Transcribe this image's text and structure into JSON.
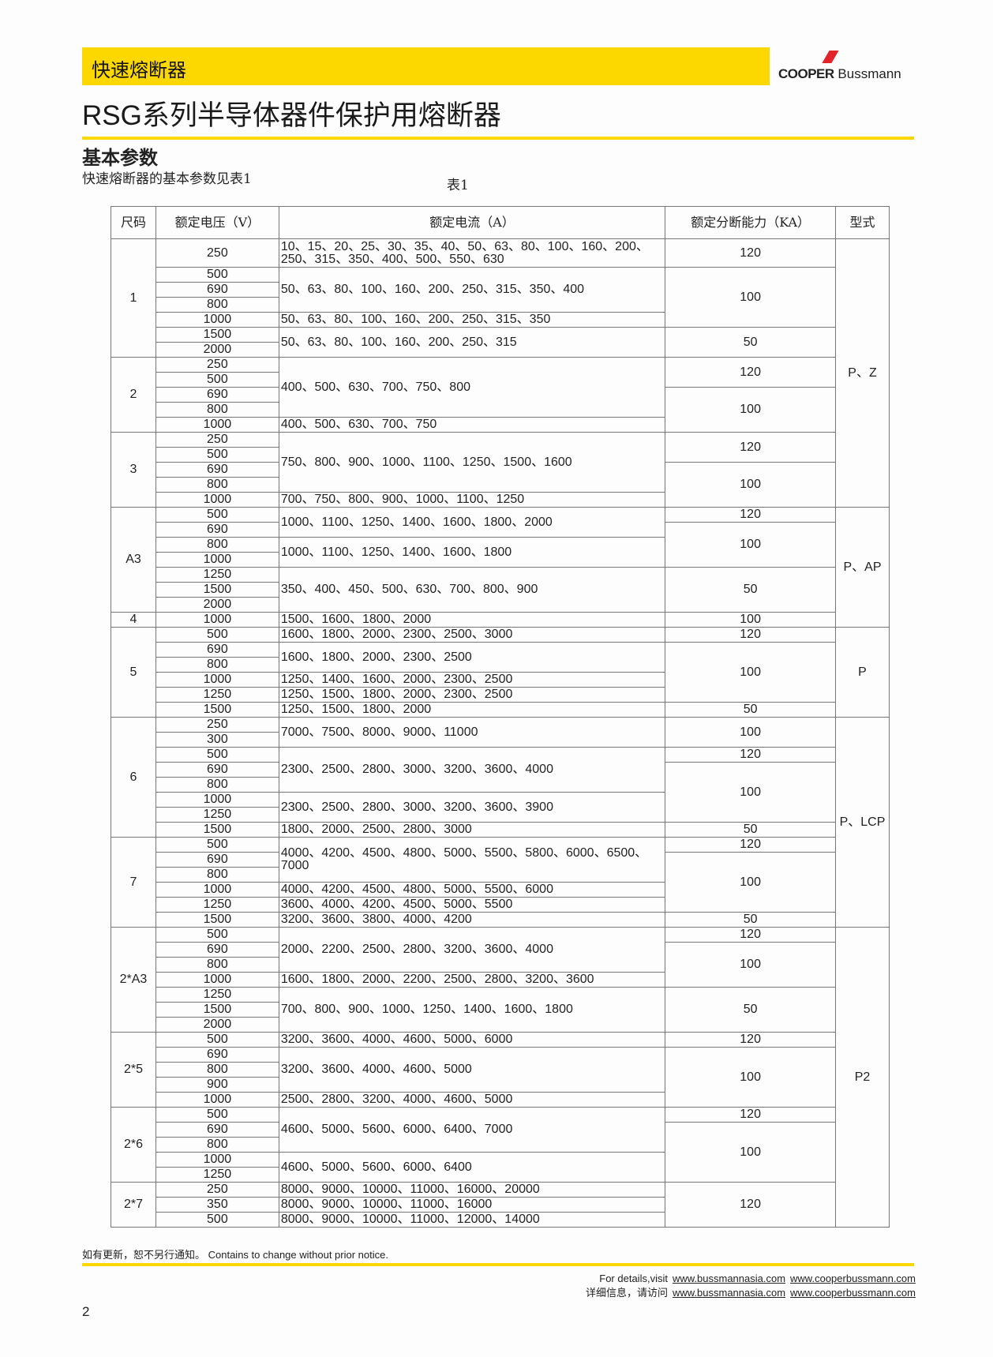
{
  "header": {
    "category": "快速熔断器",
    "brand_bold": "COOPER",
    "brand_rest": " Bussmann",
    "brand_color": "#e2232a",
    "accent": "#fcd800"
  },
  "title": "RSG系列半导体器件保护用熔断器",
  "section_title": "基本参数",
  "section_sub": "快速熔断器的基本参数见表1",
  "table_caption": "表1",
  "table": {
    "headers": [
      "尺码",
      "额定电压（V）",
      "额定电流（A）",
      "额定分断能力（KA）",
      "型式"
    ],
    "types": [
      {
        "text": "P、Z",
        "groups": 3
      },
      {
        "text": "P、AP",
        "groups": 2
      },
      {
        "text": "P",
        "groups": 1
      },
      {
        "text": "P、LCP",
        "groups": 2
      },
      {
        "text": "P2",
        "groups": 4
      }
    ],
    "groups": [
      {
        "size": "1",
        "voltages": [
          "250",
          "500",
          "690",
          "800",
          "1000",
          "1500",
          "2000"
        ],
        "currents": [
          {
            "text": "10、15、20、25、30、35、40、50、63、80、100、160、200、250、315、350、400、500、550、630",
            "span": 1
          },
          {
            "text": "50、63、80、100、160、200、250、315、350、400",
            "span": 3
          },
          {
            "text": "50、63、80、100、160、200、250、315、350",
            "span": 1
          },
          {
            "text": "50、63、80、100、160、200、250、315",
            "span": 2
          }
        ],
        "ka": [
          {
            "text": "120",
            "span": 1
          },
          {
            "text": "100",
            "span": 4
          },
          {
            "text": "50",
            "span": 2
          }
        ]
      },
      {
        "size": "2",
        "voltages": [
          "250",
          "500",
          "690",
          "800",
          "1000"
        ],
        "currents": [
          {
            "text": "400、500、630、700、750、800",
            "span": 4
          },
          {
            "text": "400、500、630、700、750",
            "span": 1
          }
        ],
        "ka": [
          {
            "text": "120",
            "span": 2
          },
          {
            "text": "100",
            "span": 3
          }
        ]
      },
      {
        "size": "3",
        "voltages": [
          "250",
          "500",
          "690",
          "800",
          "1000"
        ],
        "currents": [
          {
            "text": "750、800、900、1000、1100、1250、1500、1600",
            "span": 4
          },
          {
            "text": "700、750、800、900、1000、1100、1250",
            "span": 1
          }
        ],
        "ka": [
          {
            "text": "120",
            "span": 2
          },
          {
            "text": "100",
            "span": 3
          }
        ]
      },
      {
        "size": "A3",
        "voltages": [
          "500",
          "690",
          "800",
          "1000",
          "1250",
          "1500",
          "2000"
        ],
        "currents": [
          {
            "text": "1000、1100、1250、1400、1600、1800、2000",
            "span": 2
          },
          {
            "text": "1000、1100、1250、1400、1600、1800",
            "span": 2
          },
          {
            "text": "350、400、450、500、630、700、800、900",
            "span": 3
          }
        ],
        "ka": [
          {
            "text": "120",
            "span": 1
          },
          {
            "text": "100",
            "span": 3
          },
          {
            "text": "50",
            "span": 3
          }
        ]
      },
      {
        "size": "4",
        "voltages": [
          "1000"
        ],
        "currents": [
          {
            "text": "1500、1600、1800、2000",
            "span": 1
          }
        ],
        "ka": [
          {
            "text": "100",
            "span": 1
          }
        ]
      },
      {
        "size": "5",
        "voltages": [
          "500",
          "690",
          "800",
          "1000",
          "1250",
          "1500"
        ],
        "currents": [
          {
            "text": "1600、1800、2000、2300、2500、3000",
            "span": 1
          },
          {
            "text": "1600、1800、2000、2300、2500",
            "span": 2
          },
          {
            "text": "1250、1400、1600、2000、2300、2500",
            "span": 1
          },
          {
            "text": "1250、1500、1800、2000、2300、2500",
            "span": 1
          },
          {
            "text": "1250、1500、1800、2000",
            "span": 1
          }
        ],
        "ka": [
          {
            "text": "120",
            "span": 1
          },
          {
            "text": "100",
            "span": 4
          },
          {
            "text": "50",
            "span": 1
          }
        ]
      },
      {
        "size": "6",
        "voltages": [
          "250",
          "300",
          "500",
          "690",
          "800",
          "1000",
          "1250",
          "1500"
        ],
        "currents": [
          {
            "text": "7000、7500、8000、9000、11000",
            "span": 2
          },
          {
            "text": "2300、2500、2800、3000、3200、3600、4000",
            "span": 3
          },
          {
            "text": "2300、2500、2800、3000、3200、3600、3900",
            "span": 2
          },
          {
            "text": "1800、2000、2500、2800、3000",
            "span": 1
          }
        ],
        "ka": [
          {
            "text": "100",
            "span": 2
          },
          {
            "text": "120",
            "span": 1
          },
          {
            "text": "100",
            "span": 4
          },
          {
            "text": "50",
            "span": 1
          }
        ]
      },
      {
        "size": "7",
        "voltages": [
          "500",
          "690",
          "800",
          "1000",
          "1250",
          "1500"
        ],
        "currents": [
          {
            "text": "4000、4200、4500、4800、5000、5500、5800、6000、6500、7000",
            "span": 3
          },
          {
            "text": "4000、4200、4500、4800、5000、5500、6000",
            "span": 1
          },
          {
            "text": "3600、4000、4200、4500、5000、5500",
            "span": 1
          },
          {
            "text": "3200、3600、3800、4000、4200",
            "span": 1
          }
        ],
        "ka": [
          {
            "text": "120",
            "span": 1
          },
          {
            "text": "100",
            "span": 4
          },
          {
            "text": "50",
            "span": 1
          }
        ]
      },
      {
        "size": "2*A3",
        "voltages": [
          "500",
          "690",
          "800",
          "1000",
          "1250",
          "1500",
          "2000"
        ],
        "currents": [
          {
            "text": "2000、2200、2500、2800、3200、3600、4000",
            "span": 3
          },
          {
            "text": "1600、1800、2000、2200、2500、2800、3200、3600",
            "span": 1
          },
          {
            "text": "700、800、900、1000、1250、1400、1600、1800",
            "span": 3
          }
        ],
        "ka": [
          {
            "text": "120",
            "span": 1
          },
          {
            "text": "100",
            "span": 3
          },
          {
            "text": "50",
            "span": 3
          }
        ]
      },
      {
        "size": "2*5",
        "voltages": [
          "500",
          "690",
          "800",
          "900",
          "1000"
        ],
        "currents": [
          {
            "text": "3200、3600、4000、4600、5000、6000",
            "span": 1
          },
          {
            "text": "3200、3600、4000、4600、5000",
            "span": 3
          },
          {
            "text": "2500、2800、3200、4000、4600、5000",
            "span": 1
          }
        ],
        "ka": [
          {
            "text": "120",
            "span": 1
          },
          {
            "text": "100",
            "span": 4
          }
        ]
      },
      {
        "size": "2*6",
        "voltages": [
          "500",
          "690",
          "800",
          "1000",
          "1250"
        ],
        "currents": [
          {
            "text": "4600、5000、5600、6000、6400、7000",
            "span": 3
          },
          {
            "text": "4600、5000、5600、6000、6400",
            "span": 2
          }
        ],
        "ka": [
          {
            "text": "120",
            "span": 1
          },
          {
            "text": "100",
            "span": 4
          }
        ]
      },
      {
        "size": "2*7",
        "voltages": [
          "250",
          "350",
          "500"
        ],
        "currents": [
          {
            "text": "8000、9000、10000、11000、16000、20000",
            "span": 1
          },
          {
            "text": "8000、9000、10000、11000、16000",
            "span": 1
          },
          {
            "text": "8000、9000、10000、11000、12000、14000",
            "span": 1
          }
        ],
        "ka": [
          {
            "text": "120",
            "span": 3
          }
        ]
      }
    ]
  },
  "footer": {
    "notice": "如有更新，恕不另行通知。  Contains to change without prior notice.",
    "line1_label": "For details,visit",
    "line2_label": "详细信息，请访问",
    "link1": "www.bussmannasia.com",
    "link2": "www.cooperbussmann.com",
    "page_number": "2"
  }
}
